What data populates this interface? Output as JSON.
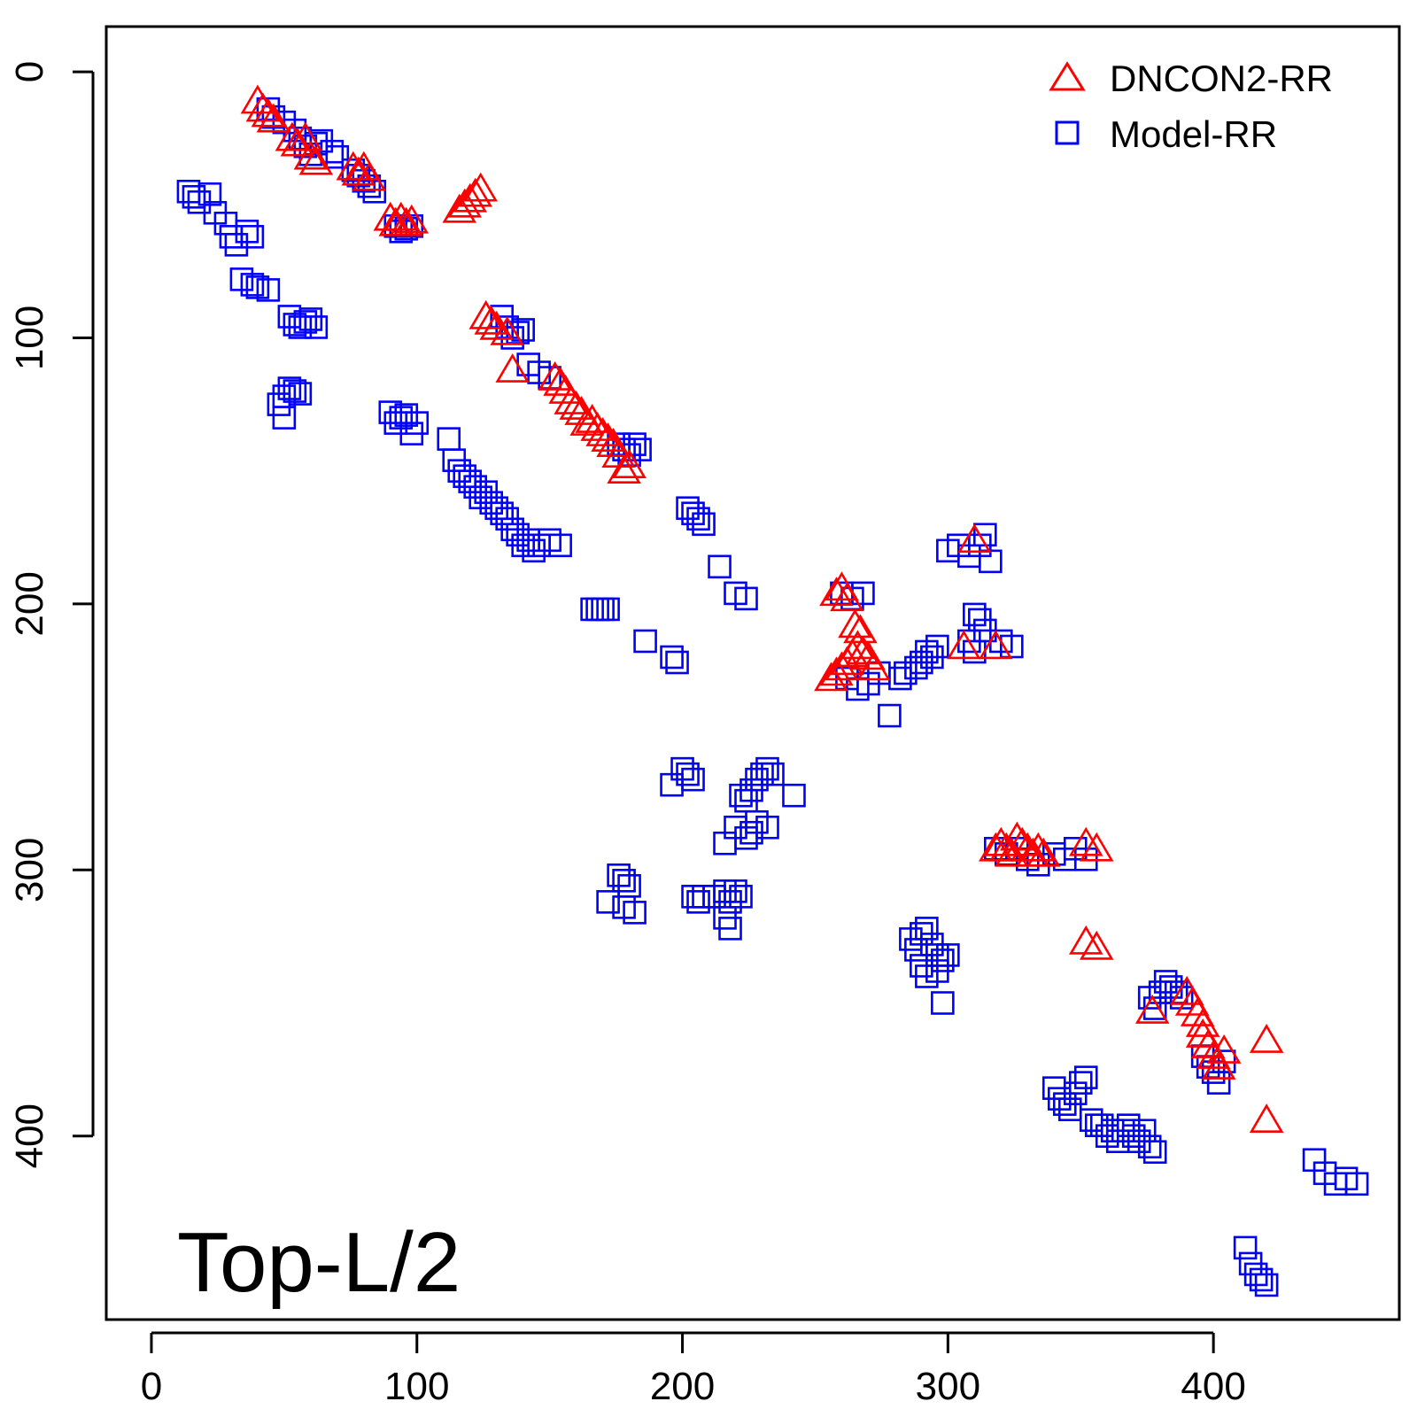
{
  "chart_data": {
    "type": "scatter",
    "panel_label": "Top-L/2",
    "title": "",
    "xlabel": "",
    "ylabel": "",
    "xlim": [
      -17,
      470
    ],
    "ylim": [
      -17,
      469
    ],
    "y_reversed": true,
    "x_ticks": [
      0,
      100,
      200,
      300,
      400
    ],
    "y_ticks": [
      0,
      100,
      200,
      300,
      400
    ],
    "grid": false,
    "legend_position": "top-right",
    "series": [
      {
        "name": "DNCON2-RR",
        "marker": "triangle",
        "color": "#ff0000",
        "points": [
          [
            40,
            11
          ],
          [
            42,
            14
          ],
          [
            44,
            16
          ],
          [
            46,
            18
          ],
          [
            53,
            25
          ],
          [
            55,
            27
          ],
          [
            58,
            25
          ],
          [
            60,
            32
          ],
          [
            62,
            34
          ],
          [
            76,
            36
          ],
          [
            78,
            38
          ],
          [
            80,
            36
          ],
          [
            82,
            40
          ],
          [
            90,
            55
          ],
          [
            92,
            57
          ],
          [
            94,
            55
          ],
          [
            96,
            57
          ],
          [
            98,
            56
          ],
          [
            116,
            52
          ],
          [
            118,
            50
          ],
          [
            120,
            48
          ],
          [
            122,
            46
          ],
          [
            124,
            44
          ],
          [
            126,
            92
          ],
          [
            128,
            94
          ],
          [
            130,
            96
          ],
          [
            134,
            98
          ],
          [
            136,
            112
          ],
          [
            152,
            115
          ],
          [
            154,
            117
          ],
          [
            156,
            120
          ],
          [
            158,
            124
          ],
          [
            160,
            126
          ],
          [
            162,
            128
          ],
          [
            164,
            132
          ],
          [
            166,
            131
          ],
          [
            168,
            134
          ],
          [
            170,
            136
          ],
          [
            172,
            138
          ],
          [
            174,
            140
          ],
          [
            176,
            144
          ],
          [
            178,
            150
          ],
          [
            180,
            148
          ],
          [
            258,
            196
          ],
          [
            260,
            194
          ],
          [
            262,
            198
          ],
          [
            256,
            228
          ],
          [
            258,
            226
          ],
          [
            260,
            224
          ],
          [
            262,
            222
          ],
          [
            264,
            219
          ],
          [
            266,
            216
          ],
          [
            268,
            218
          ],
          [
            270,
            220
          ],
          [
            272,
            224
          ],
          [
            265,
            208
          ],
          [
            267,
            210
          ],
          [
            310,
            176
          ],
          [
            306,
            216
          ],
          [
            318,
            216
          ],
          [
            318,
            292
          ],
          [
            320,
            290
          ],
          [
            322,
            292
          ],
          [
            324,
            294
          ],
          [
            326,
            288
          ],
          [
            328,
            290
          ],
          [
            330,
            292
          ],
          [
            332,
            294
          ],
          [
            334,
            292
          ],
          [
            336,
            294
          ],
          [
            352,
            290
          ],
          [
            356,
            292
          ],
          [
            352,
            327
          ],
          [
            356,
            329
          ],
          [
            377,
            353
          ],
          [
            390,
            346
          ],
          [
            392,
            350
          ],
          [
            394,
            354
          ],
          [
            396,
            358
          ],
          [
            396,
            362
          ],
          [
            398,
            366
          ],
          [
            400,
            370
          ],
          [
            402,
            374
          ],
          [
            404,
            368
          ],
          [
            420,
            364
          ],
          [
            420,
            394
          ]
        ]
      },
      {
        "name": "Model-RR",
        "marker": "square",
        "color": "#0000ff",
        "points": [
          [
            44,
            14
          ],
          [
            46,
            17
          ],
          [
            50,
            19
          ],
          [
            54,
            22
          ],
          [
            56,
            25
          ],
          [
            58,
            28
          ],
          [
            60,
            31
          ],
          [
            62,
            27
          ],
          [
            64,
            26
          ],
          [
            68,
            30
          ],
          [
            70,
            32
          ],
          [
            76,
            37
          ],
          [
            78,
            39
          ],
          [
            80,
            41
          ],
          [
            82,
            43
          ],
          [
            84,
            45
          ],
          [
            92,
            58
          ],
          [
            94,
            60
          ],
          [
            96,
            59
          ],
          [
            98,
            58
          ],
          [
            14,
            45
          ],
          [
            16,
            47
          ],
          [
            18,
            49
          ],
          [
            22,
            46
          ],
          [
            24,
            53
          ],
          [
            28,
            57
          ],
          [
            30,
            62
          ],
          [
            32,
            65
          ],
          [
            36,
            60
          ],
          [
            38,
            62
          ],
          [
            34,
            78
          ],
          [
            38,
            80
          ],
          [
            40,
            81
          ],
          [
            44,
            82
          ],
          [
            52,
            92
          ],
          [
            54,
            95
          ],
          [
            56,
            96
          ],
          [
            58,
            94
          ],
          [
            60,
            93
          ],
          [
            62,
            96
          ],
          [
            48,
            125
          ],
          [
            50,
            122
          ],
          [
            52,
            119
          ],
          [
            54,
            120
          ],
          [
            56,
            121
          ],
          [
            50,
            130
          ],
          [
            90,
            128
          ],
          [
            92,
            132
          ],
          [
            94,
            130
          ],
          [
            96,
            129
          ],
          [
            98,
            136
          ],
          [
            100,
            132
          ],
          [
            112,
            138
          ],
          [
            114,
            146
          ],
          [
            116,
            150
          ],
          [
            118,
            152
          ],
          [
            120,
            154
          ],
          [
            122,
            156
          ],
          [
            124,
            160
          ],
          [
            126,
            158
          ],
          [
            128,
            162
          ],
          [
            130,
            164
          ],
          [
            132,
            166
          ],
          [
            134,
            168
          ],
          [
            136,
            172
          ],
          [
            138,
            174
          ],
          [
            140,
            178
          ],
          [
            142,
            176
          ],
          [
            144,
            180
          ],
          [
            146,
            178
          ],
          [
            150,
            176
          ],
          [
            154,
            178
          ],
          [
            146,
            113
          ],
          [
            150,
            115
          ],
          [
            132,
            92
          ],
          [
            134,
            96
          ],
          [
            136,
            100
          ],
          [
            138,
            98
          ],
          [
            140,
            97
          ],
          [
            142,
            110
          ],
          [
            176,
            140
          ],
          [
            178,
            142
          ],
          [
            180,
            144
          ],
          [
            182,
            140
          ],
          [
            184,
            142
          ],
          [
            202,
            164
          ],
          [
            204,
            166
          ],
          [
            206,
            168
          ],
          [
            208,
            170
          ],
          [
            214,
            186
          ],
          [
            220,
            196
          ],
          [
            224,
            198
          ],
          [
            166,
            202
          ],
          [
            168,
            202
          ],
          [
            170,
            202
          ],
          [
            172,
            202
          ],
          [
            186,
            214
          ],
          [
            196,
            220
          ],
          [
            198,
            222
          ],
          [
            200,
            262
          ],
          [
            202,
            264
          ],
          [
            204,
            266
          ],
          [
            196,
            268
          ],
          [
            222,
            272
          ],
          [
            224,
            274
          ],
          [
            226,
            270
          ],
          [
            228,
            266
          ],
          [
            230,
            264
          ],
          [
            232,
            262
          ],
          [
            234,
            264
          ],
          [
            242,
            272
          ],
          [
            220,
            284
          ],
          [
            224,
            288
          ],
          [
            226,
            286
          ],
          [
            228,
            282
          ],
          [
            232,
            284
          ],
          [
            216,
            290
          ],
          [
            176,
            302
          ],
          [
            178,
            304
          ],
          [
            180,
            306
          ],
          [
            172,
            312
          ],
          [
            178,
            314
          ],
          [
            182,
            316
          ],
          [
            204,
            310
          ],
          [
            206,
            312
          ],
          [
            208,
            310
          ],
          [
            212,
            310
          ],
          [
            216,
            308
          ],
          [
            218,
            312
          ],
          [
            220,
            308
          ],
          [
            222,
            310
          ],
          [
            216,
            318
          ],
          [
            218,
            322
          ],
          [
            260,
            196
          ],
          [
            264,
            198
          ],
          [
            268,
            196
          ],
          [
            262,
            228
          ],
          [
            266,
            232
          ],
          [
            270,
            230
          ],
          [
            274,
            226
          ],
          [
            278,
            242
          ],
          [
            282,
            228
          ],
          [
            284,
            226
          ],
          [
            288,
            224
          ],
          [
            290,
            222
          ],
          [
            292,
            218
          ],
          [
            294,
            220
          ],
          [
            296,
            216
          ],
          [
            300,
            180
          ],
          [
            304,
            178
          ],
          [
            308,
            182
          ],
          [
            312,
            178
          ],
          [
            314,
            174
          ],
          [
            316,
            184
          ],
          [
            310,
            204
          ],
          [
            312,
            206
          ],
          [
            308,
            214
          ],
          [
            310,
            218
          ],
          [
            314,
            210
          ],
          [
            320,
            214
          ],
          [
            324,
            216
          ],
          [
            318,
            292
          ],
          [
            322,
            294
          ],
          [
            326,
            292
          ],
          [
            330,
            296
          ],
          [
            334,
            298
          ],
          [
            340,
            294
          ],
          [
            344,
            296
          ],
          [
            348,
            292
          ],
          [
            352,
            296
          ],
          [
            286,
            326
          ],
          [
            288,
            330
          ],
          [
            290,
            324
          ],
          [
            292,
            322
          ],
          [
            294,
            328
          ],
          [
            296,
            332
          ],
          [
            298,
            334
          ],
          [
            300,
            332
          ],
          [
            290,
            336
          ],
          [
            292,
            340
          ],
          [
            296,
            338
          ],
          [
            298,
            350
          ],
          [
            376,
            348
          ],
          [
            378,
            352
          ],
          [
            380,
            346
          ],
          [
            382,
            342
          ],
          [
            384,
            344
          ],
          [
            386,
            346
          ],
          [
            388,
            348
          ],
          [
            340,
            382
          ],
          [
            342,
            386
          ],
          [
            344,
            388
          ],
          [
            346,
            390
          ],
          [
            348,
            384
          ],
          [
            350,
            380
          ],
          [
            352,
            378
          ],
          [
            354,
            394
          ],
          [
            356,
            396
          ],
          [
            358,
            396
          ],
          [
            360,
            400
          ],
          [
            362,
            398
          ],
          [
            364,
            402
          ],
          [
            366,
            398
          ],
          [
            368,
            396
          ],
          [
            370,
            400
          ],
          [
            372,
            402
          ],
          [
            374,
            398
          ],
          [
            376,
            404
          ],
          [
            378,
            406
          ],
          [
            396,
            370
          ],
          [
            398,
            374
          ],
          [
            400,
            376
          ],
          [
            402,
            380
          ],
          [
            404,
            372
          ],
          [
            438,
            409
          ],
          [
            442,
            414
          ],
          [
            446,
            418
          ],
          [
            450,
            416
          ],
          [
            454,
            418
          ],
          [
            412,
            442
          ],
          [
            414,
            448
          ],
          [
            416,
            452
          ],
          [
            418,
            454
          ],
          [
            420,
            456
          ]
        ]
      }
    ]
  }
}
